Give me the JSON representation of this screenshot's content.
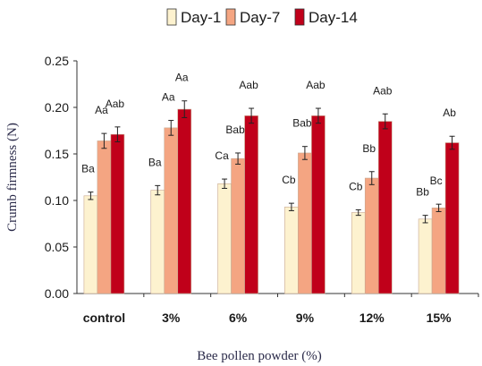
{
  "chart_data": {
    "type": "bar",
    "categories": [
      "control",
      "3%",
      "6%",
      "9%",
      "12%",
      "15%"
    ],
    "series": [
      {
        "name": "Day-1",
        "color": "#fdf2cf",
        "values": [
          0.105,
          0.111,
          0.118,
          0.093,
          0.087,
          0.08
        ],
        "errors": [
          0.004,
          0.005,
          0.005,
          0.004,
          0.003,
          0.004
        ],
        "labels": [
          "Ba",
          "Ba",
          "Ca",
          "Cb",
          "Cb",
          "Bb"
        ]
      },
      {
        "name": "Day-7",
        "color": "#f4a582",
        "values": [
          0.164,
          0.178,
          0.145,
          0.151,
          0.124,
          0.092
        ],
        "errors": [
          0.008,
          0.008,
          0.006,
          0.007,
          0.007,
          0.004
        ],
        "labels": [
          "Aa",
          "Aa",
          "Bab",
          "Bab",
          "Bb",
          "Bc"
        ]
      },
      {
        "name": "Day-14",
        "color": "#c0001a",
        "values": [
          0.171,
          0.198,
          0.191,
          0.191,
          0.185,
          0.162
        ],
        "errors": [
          0.008,
          0.009,
          0.008,
          0.008,
          0.008,
          0.007
        ],
        "labels": [
          "Aab",
          "Aa",
          "Aab",
          "Aab",
          "Aab",
          "Ab"
        ]
      }
    ],
    "xlabel": "Bee pollen powder (%)",
    "ylabel": "Crumb firmness (N)",
    "ylim": [
      0,
      0.25
    ],
    "yticks": [
      "0.00",
      "0.05",
      "0.10",
      "0.15",
      "0.20",
      "0.25"
    ],
    "grid": false,
    "legend": "top-center"
  }
}
